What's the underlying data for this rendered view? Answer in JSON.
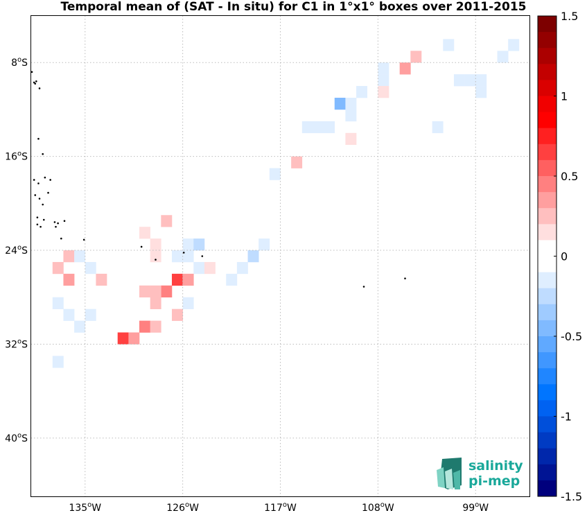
{
  "title": "Temporal mean of (SAT - In situ) for C1 in 1°x1° boxes over 2011-2015",
  "map": {
    "lon_range": [
      -140,
      -94
    ],
    "lat_range": [
      -45,
      -4
    ],
    "lat_ticks": [
      {
        "lat": -8,
        "label": "8",
        "hemi": "S"
      },
      {
        "lat": -16,
        "label": "16",
        "hemi": "S"
      },
      {
        "lat": -24,
        "label": "24",
        "hemi": "S"
      },
      {
        "lat": -32,
        "label": "32",
        "hemi": "S"
      },
      {
        "lat": -40,
        "label": "40",
        "hemi": "S"
      }
    ],
    "lon_ticks": [
      {
        "lon": -135,
        "label": "135",
        "hemi": "W"
      },
      {
        "lon": -126,
        "label": "126",
        "hemi": "W"
      },
      {
        "lon": -117,
        "label": "117",
        "hemi": "W"
      },
      {
        "lon": -108,
        "label": "108",
        "hemi": "W"
      },
      {
        "lon": -99,
        "label": "99",
        "hemi": "W"
      }
    ],
    "degree_symbol": "o",
    "grid": true,
    "cells": [
      {
        "lon": -102,
        "lat": -6,
        "v": -0.15
      },
      {
        "lon": -97,
        "lat": -7,
        "v": -0.1
      },
      {
        "lon": -96,
        "lat": -6,
        "v": -0.1
      },
      {
        "lon": -105,
        "lat": -7,
        "v": 0.2
      },
      {
        "lon": -106,
        "lat": -8,
        "v": 0.3
      },
      {
        "lon": -108,
        "lat": -8,
        "v": -0.1
      },
      {
        "lon": -108,
        "lat": -9,
        "v": -0.1
      },
      {
        "lon": -108,
        "lat": -10,
        "v": 0.15
      },
      {
        "lon": -101,
        "lat": -9,
        "v": -0.1
      },
      {
        "lon": -100,
        "lat": -9,
        "v": -0.1
      },
      {
        "lon": -99,
        "lat": -9,
        "v": -0.1
      },
      {
        "lon": -99,
        "lat": -10,
        "v": -0.1
      },
      {
        "lon": -110,
        "lat": -10,
        "v": -0.1
      },
      {
        "lon": -112,
        "lat": -11,
        "v": -0.5
      },
      {
        "lon": -111,
        "lat": -11,
        "v": -0.2
      },
      {
        "lon": -111,
        "lat": -12,
        "v": -0.15
      },
      {
        "lon": -115,
        "lat": -13,
        "v": -0.1
      },
      {
        "lon": -114,
        "lat": -13,
        "v": -0.1
      },
      {
        "lon": -113,
        "lat": -13,
        "v": -0.1
      },
      {
        "lon": -103,
        "lat": -13,
        "v": -0.1
      },
      {
        "lon": -111,
        "lat": -14,
        "v": 0.15
      },
      {
        "lon": -116,
        "lat": -16,
        "v": 0.2
      },
      {
        "lon": -118,
        "lat": -17,
        "v": -0.15
      },
      {
        "lon": -128,
        "lat": -21,
        "v": 0.2
      },
      {
        "lon": -130,
        "lat": -22,
        "v": 0.15
      },
      {
        "lon": -129,
        "lat": -23,
        "v": 0.15
      },
      {
        "lon": -129,
        "lat": -24,
        "v": 0.15
      },
      {
        "lon": -126,
        "lat": -23,
        "v": -0.15
      },
      {
        "lon": -125,
        "lat": -23,
        "v": -0.25
      },
      {
        "lon": -127,
        "lat": -24,
        "v": -0.2
      },
      {
        "lon": -126,
        "lat": -24,
        "v": -0.2
      },
      {
        "lon": -119,
        "lat": -23,
        "v": -0.15
      },
      {
        "lon": -120,
        "lat": -24,
        "v": -0.25
      },
      {
        "lon": -125,
        "lat": -25,
        "v": -0.15
      },
      {
        "lon": -124,
        "lat": -25,
        "v": 0.15
      },
      {
        "lon": -122,
        "lat": -26,
        "v": -0.1
      },
      {
        "lon": -121,
        "lat": -25,
        "v": -0.2
      },
      {
        "lon": -138,
        "lat": -25,
        "v": 0.2
      },
      {
        "lon": -137,
        "lat": -24,
        "v": 0.2
      },
      {
        "lon": -136,
        "lat": -24,
        "v": -0.15
      },
      {
        "lon": -135,
        "lat": -25,
        "v": -0.15
      },
      {
        "lon": -137,
        "lat": -26,
        "v": 0.35
      },
      {
        "lon": -134,
        "lat": -26,
        "v": 0.2
      },
      {
        "lon": -127,
        "lat": -26,
        "v": 0.6
      },
      {
        "lon": -126,
        "lat": -26,
        "v": 0.3
      },
      {
        "lon": -128,
        "lat": -27,
        "v": 0.45
      },
      {
        "lon": -129,
        "lat": -27,
        "v": 0.2
      },
      {
        "lon": -130,
        "lat": -27,
        "v": 0.2
      },
      {
        "lon": -129,
        "lat": -28,
        "v": 0.2
      },
      {
        "lon": -126,
        "lat": -28,
        "v": -0.2
      },
      {
        "lon": -127,
        "lat": -29,
        "v": 0.2
      },
      {
        "lon": -138,
        "lat": -28,
        "v": -0.15
      },
      {
        "lon": -137,
        "lat": -29,
        "v": -0.15
      },
      {
        "lon": -136,
        "lat": -30,
        "v": -0.15
      },
      {
        "lon": -135,
        "lat": -29,
        "v": -0.15
      },
      {
        "lon": -130,
        "lat": -30,
        "v": 0.45
      },
      {
        "lon": -129,
        "lat": -30,
        "v": 0.2
      },
      {
        "lon": -132,
        "lat": -31,
        "v": 0.6
      },
      {
        "lon": -131,
        "lat": -31,
        "v": 0.3
      },
      {
        "lon": -138,
        "lat": -33,
        "v": -0.15
      }
    ],
    "islands": [
      [
        -139.9,
        -8.8
      ],
      [
        -139.7,
        -9.7
      ],
      [
        -139.6,
        -9.8
      ],
      [
        -139.5,
        -9.6
      ],
      [
        -139.2,
        -10.2
      ],
      [
        -139.3,
        -14.5
      ],
      [
        -138.9,
        -15.8
      ],
      [
        -139.7,
        -18.0
      ],
      [
        -139.3,
        -18.3
      ],
      [
        -138.7,
        -17.8
      ],
      [
        -138.2,
        -18.0
      ],
      [
        -139.6,
        -19.3
      ],
      [
        -139.2,
        -19.6
      ],
      [
        -138.9,
        -20.1
      ],
      [
        -138.4,
        -19.1
      ],
      [
        -139.4,
        -21.2
      ],
      [
        -138.8,
        -21.4
      ],
      [
        -137.8,
        -21.6
      ],
      [
        -137.5,
        -21.7
      ],
      [
        -136.9,
        -21.5
      ],
      [
        -139.4,
        -21.8
      ],
      [
        -139.1,
        -22.0
      ],
      [
        -137.7,
        -22.0
      ],
      [
        -137.2,
        -23.0
      ],
      [
        -135.1,
        -23.1
      ],
      [
        -129.8,
        -23.7
      ],
      [
        -128.5,
        -24.8
      ],
      [
        -125.9,
        -24.2
      ],
      [
        -124.2,
        -24.5
      ],
      [
        -109.3,
        -27.1
      ],
      [
        -105.5,
        -26.4
      ]
    ]
  },
  "colorbar": {
    "range": [
      -1.5,
      1.5
    ],
    "n_bins": 30,
    "tick_values": [
      1.5,
      1,
      0.5,
      0,
      -0.5,
      -1,
      -1.5
    ],
    "tick_labels": [
      "1.5",
      "1",
      "0.5",
      "0",
      "-0.5",
      "-1",
      "-1.5"
    ]
  },
  "logo": {
    "line1": "salinity",
    "line2": "pi-mep"
  }
}
